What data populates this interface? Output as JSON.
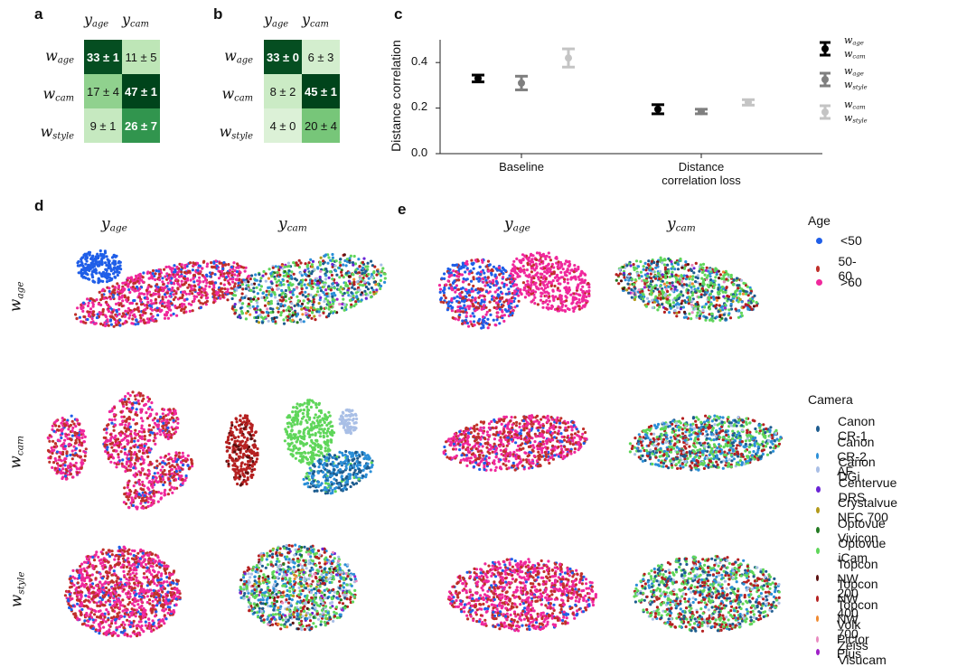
{
  "panel_labels": {
    "a": "a",
    "b": "b",
    "c": "c",
    "d": "d",
    "e": "e"
  },
  "heatmap_labels": {
    "y_age": {
      "base": "y",
      "sub": "age"
    },
    "y_cam": {
      "base": "y",
      "sub": "cam"
    },
    "w_age": {
      "base": "w",
      "sub": "age"
    },
    "w_cam": {
      "base": "w",
      "sub": "cam"
    },
    "w_style": {
      "base": "w",
      "sub": "style"
    }
  },
  "heatmap_a": {
    "cells": [
      [
        "33 ± 1",
        "11 ± 5"
      ],
      [
        "17 ± 4",
        "47 ± 1"
      ],
      [
        "9 ± 1",
        "26 ± 7"
      ]
    ],
    "values": [
      [
        33,
        11
      ],
      [
        17,
        47
      ],
      [
        9,
        26
      ]
    ]
  },
  "heatmap_b": {
    "cells": [
      [
        "33 ± 0",
        "6 ± 3"
      ],
      [
        "8 ± 2",
        "45 ± 1"
      ],
      [
        "4 ± 0",
        "20 ± 4"
      ]
    ],
    "values": [
      [
        33,
        6
      ],
      [
        8,
        45
      ],
      [
        4,
        20
      ]
    ]
  },
  "chart_data": [
    {
      "type": "errorbar",
      "panel": "c",
      "ylabel": "Distance correlation",
      "ylim": [
        0.0,
        0.5
      ],
      "yticks": [
        "0.0",
        "0.2",
        "0.4"
      ],
      "categories": [
        "Baseline",
        "Distance correlation loss"
      ],
      "category_lines": [
        [
          "Baseline"
        ],
        [
          "Distance",
          "correlation loss"
        ]
      ],
      "series": [
        {
          "name": "w_age, w_cam",
          "color": "#000000",
          "means": [
            0.33,
            0.195
          ],
          "errors": [
            0.015,
            0.02
          ]
        },
        {
          "name": "w_age, w_style",
          "color": "#7f7f7f",
          "means": [
            0.31,
            0.185
          ],
          "errors": [
            0.03,
            0.01
          ]
        },
        {
          "name": "w_cam, w_style",
          "color": "#c4c4c4",
          "means": [
            0.42,
            0.225
          ],
          "errors": [
            0.04,
            0.012
          ]
        }
      ],
      "legend": [
        {
          "top": {
            "base": "w",
            "sub": "age"
          },
          "bottom": {
            "base": "w",
            "sub": "cam"
          }
        },
        {
          "top": {
            "base": "w",
            "sub": "age"
          },
          "bottom": {
            "base": "w",
            "sub": "style"
          }
        },
        {
          "top": {
            "base": "w",
            "sub": "cam"
          },
          "bottom": {
            "base": "w",
            "sub": "style"
          }
        }
      ]
    },
    {
      "type": "scatter",
      "panel": "d",
      "columns": [
        "y_age",
        "y_cam"
      ],
      "rows": [
        "w_age",
        "w_cam",
        "w_style"
      ]
    },
    {
      "type": "scatter",
      "panel": "e",
      "columns": [
        "y_age",
        "y_cam"
      ],
      "rows": [
        "w_age",
        "w_cam",
        "w_style"
      ]
    }
  ],
  "age_legend": {
    "title": "Age",
    "items": [
      {
        "label": "<50",
        "color": "#1f5ee8"
      },
      {
        "label": "50-60",
        "color": "#c0302a"
      },
      {
        "label": ">60",
        "color": "#f0289c"
      }
    ]
  },
  "camera_legend": {
    "title": "Camera",
    "items": [
      {
        "label": "Canon CR-1",
        "color": "#1d5c8f"
      },
      {
        "label": "Canon CR-2 AF",
        "color": "#2b8fd8"
      },
      {
        "label": "Canon DGi",
        "color": "#a9bfe6"
      },
      {
        "label": "Centervue DRS",
        "color": "#6a24d6"
      },
      {
        "label": "Crystalvue NFC 700",
        "color": "#b39a1a"
      },
      {
        "label": "Optovue Vivicon",
        "color": "#237a22"
      },
      {
        "label": "Optovue iCam",
        "color": "#5fd65a"
      },
      {
        "label": "Topcon NW 200",
        "color": "#5a1010"
      },
      {
        "label": "Topcon NW 400",
        "color": "#b52020"
      },
      {
        "label": "Topcon NW 700",
        "color": "#f08a30"
      },
      {
        "label": "Volk Pictor Plus",
        "color": "#e98ac0"
      },
      {
        "label": "Zeiss Visucam",
        "color": "#a020c8"
      }
    ]
  }
}
